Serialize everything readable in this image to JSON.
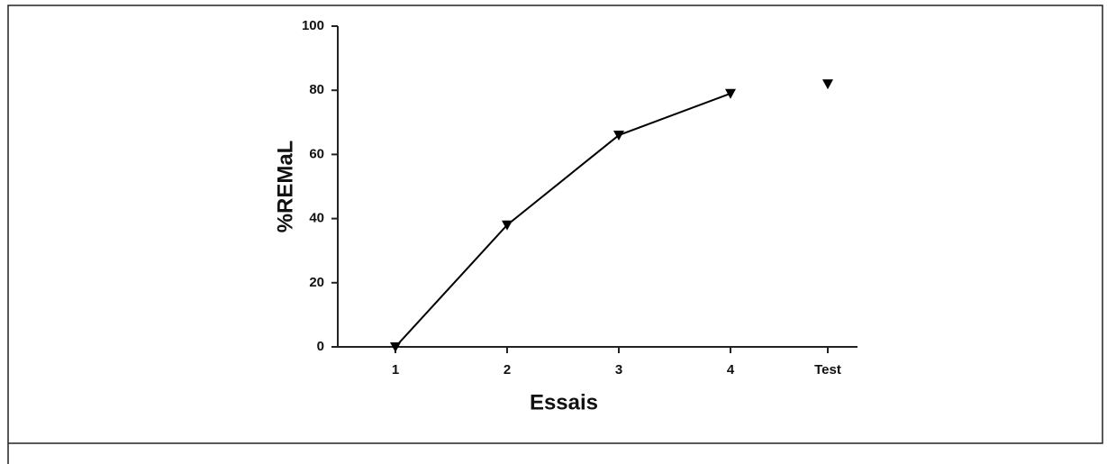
{
  "chart_data": {
    "type": "line",
    "x_label": "Essais",
    "y_label": "%REMaL",
    "categories": [
      "1",
      "2",
      "3",
      "4",
      "Test"
    ],
    "series": [
      {
        "color": "#000000",
        "values": [
          0,
          38,
          66,
          79,
          null
        ],
        "line": true
      },
      {
        "color": "#000000",
        "values": [
          null,
          null,
          null,
          null,
          82
        ],
        "line": false
      }
    ],
    "ylim": [
      0,
      100
    ],
    "yticks": [
      0,
      20,
      40,
      60,
      80,
      100
    ],
    "grid": false,
    "marker": "down-triangle"
  }
}
